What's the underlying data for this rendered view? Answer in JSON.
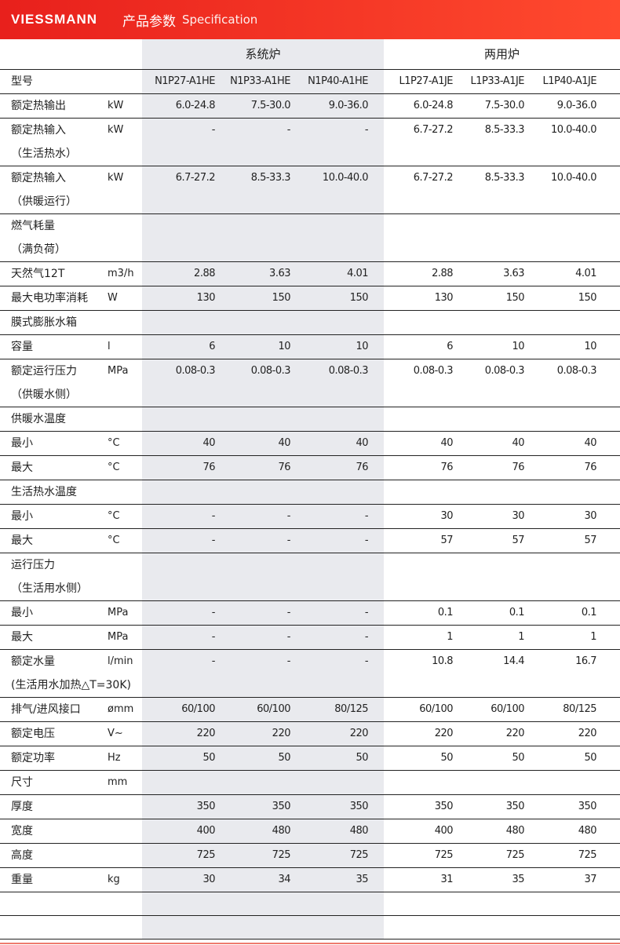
{
  "header": {
    "brand": "VIESSMANN",
    "title_cn": "产品参数",
    "title_en": "Specification",
    "color": "#e8201c"
  },
  "groups": [
    "系统炉",
    "两用炉"
  ],
  "models": {
    "label": "型号",
    "values": [
      "N1P27-A1HE",
      "N1P33-A1HE",
      "N1P40-A1HE",
      "L1P27-A1JE",
      "L1P33-A1JE",
      "L1P40-A1JE"
    ]
  },
  "rows": [
    {
      "label": [
        "额定热输出"
      ],
      "unit": "kW",
      "values": [
        "6.0-24.8",
        "7.5-30.0",
        "9.0-36.0",
        "6.0-24.8",
        "7.5-30.0",
        "9.0-36.0"
      ]
    },
    {
      "label": [
        "额定热输入",
        "（生活热水）"
      ],
      "unit": "kW",
      "values": [
        "-",
        "-",
        "-",
        "6.7-27.2",
        "8.5-33.3",
        "10.0-40.0"
      ]
    },
    {
      "label": [
        "额定热输入",
        "（供暖运行）"
      ],
      "unit": "kW",
      "values": [
        "6.7-27.2",
        "8.5-33.3",
        "10.0-40.0",
        "6.7-27.2",
        "8.5-33.3",
        "10.0-40.0"
      ]
    },
    {
      "label": [
        "燃气耗量",
        "（满负荷）"
      ],
      "unit": "",
      "values": [
        "",
        "",
        "",
        "",
        "",
        ""
      ]
    },
    {
      "label": [
        "天然气12T"
      ],
      "unit": "m3/h",
      "values": [
        "2.88",
        "3.63",
        "4.01",
        "2.88",
        "3.63",
        "4.01"
      ]
    },
    {
      "label": [
        "最大电功率消耗"
      ],
      "unit": "W",
      "values": [
        "130",
        "150",
        "150",
        "130",
        "150",
        "150"
      ]
    },
    {
      "label": [
        "膜式膨胀水箱"
      ],
      "unit": "",
      "values": [
        "",
        "",
        "",
        "",
        "",
        ""
      ]
    },
    {
      "label": [
        "容量"
      ],
      "unit": "l",
      "values": [
        "6",
        "10",
        "10",
        "6",
        "10",
        "10"
      ]
    },
    {
      "label": [
        "额定运行压力",
        "（供暖水侧）"
      ],
      "unit": "MPa",
      "values": [
        "0.08-0.3",
        "0.08-0.3",
        "0.08-0.3",
        "0.08-0.3",
        "0.08-0.3",
        "0.08-0.3"
      ]
    },
    {
      "label": [
        "供暖水温度"
      ],
      "unit": "",
      "values": [
        "",
        "",
        "",
        "",
        "",
        ""
      ]
    },
    {
      "label": [
        "最小"
      ],
      "unit": "°C",
      "values": [
        "40",
        "40",
        "40",
        "40",
        "40",
        "40"
      ]
    },
    {
      "label": [
        "最大"
      ],
      "unit": "°C",
      "values": [
        "76",
        "76",
        "76",
        "76",
        "76",
        "76"
      ]
    },
    {
      "label": [
        "生活热水温度"
      ],
      "unit": "",
      "values": [
        "",
        "",
        "",
        "",
        "",
        ""
      ]
    },
    {
      "label": [
        "最小"
      ],
      "unit": "°C",
      "values": [
        "-",
        "-",
        "-",
        "30",
        "30",
        "30"
      ]
    },
    {
      "label": [
        "最大"
      ],
      "unit": "°C",
      "values": [
        "-",
        "-",
        "-",
        "57",
        "57",
        "57"
      ]
    },
    {
      "label": [
        "运行压力",
        "（生活用水侧）"
      ],
      "unit": "",
      "values": [
        "",
        "",
        "",
        "",
        "",
        ""
      ]
    },
    {
      "label": [
        "最小"
      ],
      "unit": "MPa",
      "values": [
        "-",
        "-",
        "-",
        "0.1",
        "0.1",
        "0.1"
      ]
    },
    {
      "label": [
        "最大"
      ],
      "unit": "MPa",
      "values": [
        "-",
        "-",
        "-",
        "1",
        "1",
        "1"
      ]
    },
    {
      "label": [
        "额定水量",
        "(生活用水加热△T=30K)"
      ],
      "unit": "l/min",
      "values": [
        "-",
        "-",
        "-",
        "10.8",
        "14.4",
        "16.7"
      ]
    },
    {
      "label": [
        "排气/进风接口"
      ],
      "unit": "ømm",
      "values": [
        "60/100",
        "60/100",
        "80/125",
        "60/100",
        "60/100",
        "80/125"
      ]
    },
    {
      "label": [
        "额定电压"
      ],
      "unit": "V~",
      "values": [
        "220",
        "220",
        "220",
        "220",
        "220",
        "220"
      ]
    },
    {
      "label": [
        "额定功率"
      ],
      "unit": "Hz",
      "values": [
        "50",
        "50",
        "50",
        "50",
        "50",
        "50"
      ]
    },
    {
      "label": [
        "尺寸"
      ],
      "unit": "mm",
      "values": [
        "",
        "",
        "",
        "",
        "",
        ""
      ]
    },
    {
      "label": [
        "厚度"
      ],
      "unit": "",
      "values": [
        "350",
        "350",
        "350",
        "350",
        "350",
        "350"
      ]
    },
    {
      "label": [
        "宽度"
      ],
      "unit": "",
      "values": [
        "400",
        "480",
        "480",
        "400",
        "480",
        "480"
      ]
    },
    {
      "label": [
        "高度"
      ],
      "unit": "",
      "values": [
        "725",
        "725",
        "725",
        "725",
        "725",
        "725"
      ]
    },
    {
      "label": [
        "重量"
      ],
      "unit": "kg",
      "values": [
        "30",
        "34",
        "35",
        "31",
        "35",
        "37"
      ]
    },
    {
      "label": [
        ""
      ],
      "unit": "",
      "values": [
        "",
        "",
        "",
        "",
        "",
        ""
      ]
    },
    {
      "label": [
        ""
      ],
      "unit": "",
      "values": [
        "",
        "",
        "",
        "",
        "",
        ""
      ]
    }
  ]
}
